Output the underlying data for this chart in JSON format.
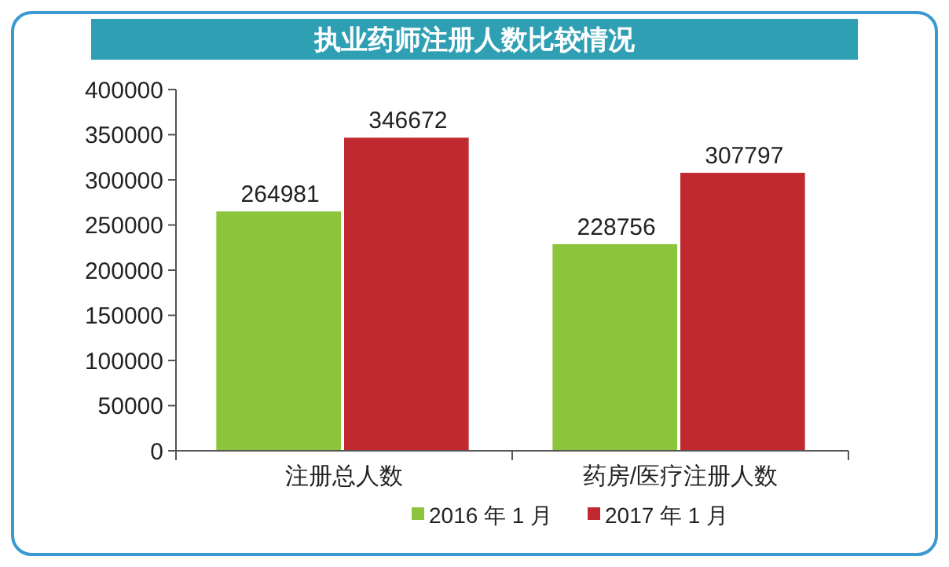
{
  "chart_data": {
    "type": "bar",
    "title": "执业药师注册人数比较情况",
    "categories": [
      "注册总人数",
      "药房/医疗注册人数"
    ],
    "series": [
      {
        "name": "2016 年 1 月",
        "color": "#8cc43c",
        "values": [
          264981,
          228756
        ]
      },
      {
        "name": "2017 年 1 月",
        "color": "#c0292f",
        "values": [
          346672,
          307797
        ]
      }
    ],
    "ylim": [
      0,
      400000
    ],
    "yticks": [
      0,
      50000,
      100000,
      150000,
      200000,
      250000,
      300000,
      350000,
      400000
    ],
    "data_labels": true,
    "legend": "bottom"
  }
}
